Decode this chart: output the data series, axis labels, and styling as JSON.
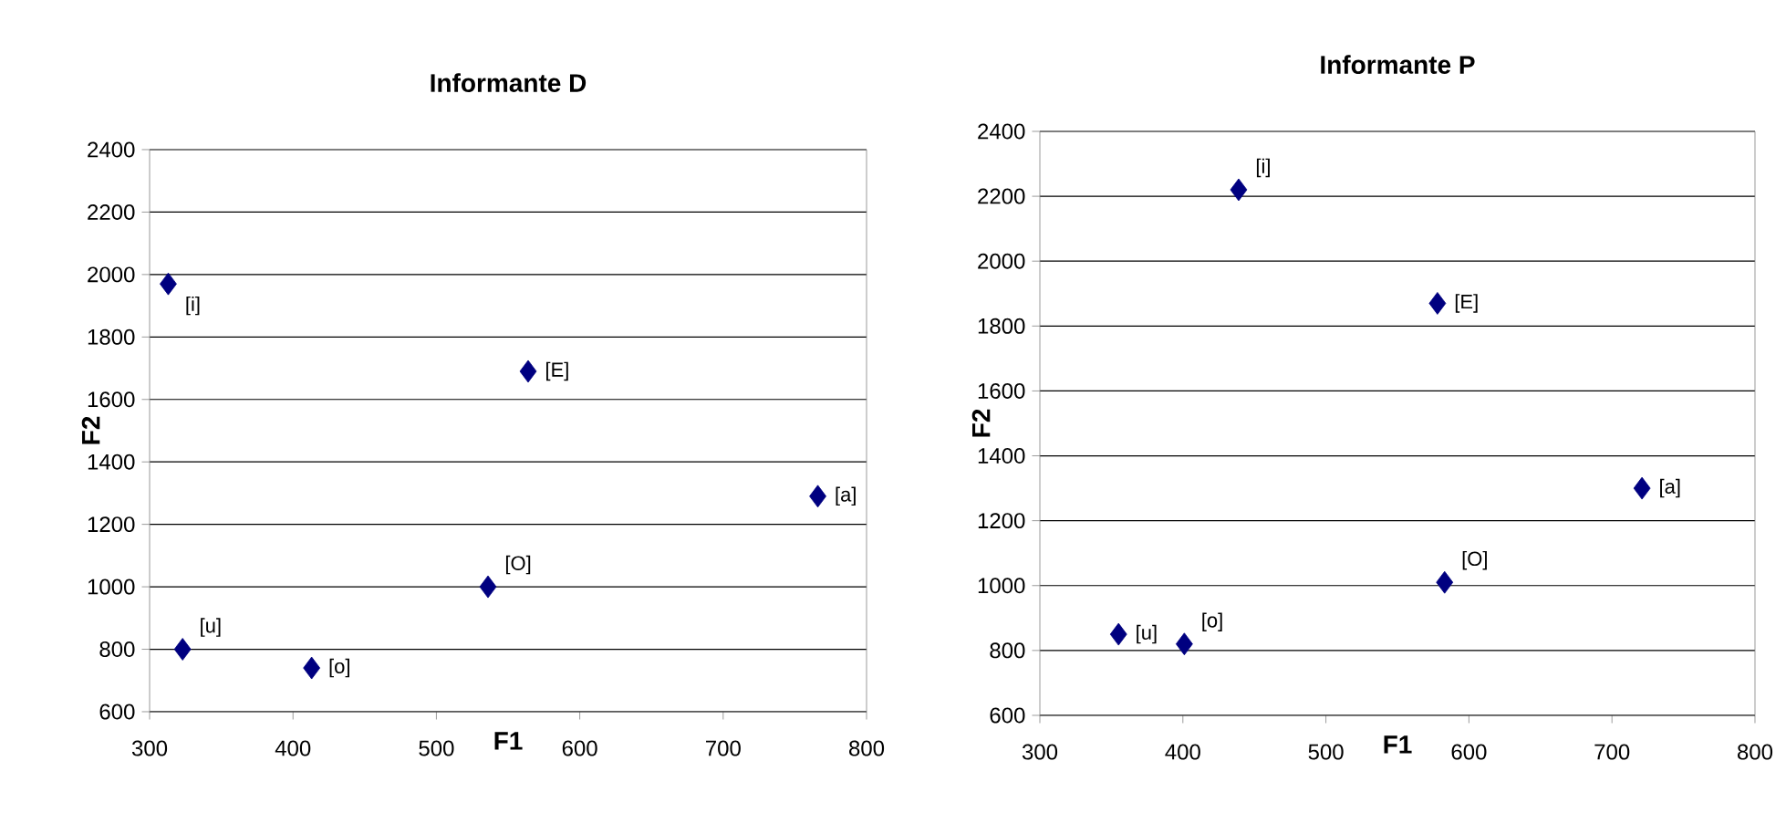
{
  "chart_data": [
    {
      "type": "scatter",
      "title": "Informante D",
      "xlabel": "F1",
      "ylabel": "F2",
      "x": [
        313,
        564,
        766,
        536,
        323,
        413
      ],
      "series": [
        {
          "color": "#000080",
          "values": [
            1970,
            1690,
            1290,
            1000,
            800,
            740
          ]
        }
      ],
      "xlim": [
        300,
        800
      ],
      "ylim": [
        600,
        2400
      ],
      "xticks": [
        300,
        400,
        500,
        600,
        700,
        800
      ],
      "yticks": [
        600,
        800,
        1000,
        1200,
        1400,
        1600,
        1800,
        2000,
        2200,
        2400
      ],
      "grid": "y",
      "marker": "diamond",
      "annotations": [
        {
          "text": "[i]",
          "x": 313,
          "y": 1970
        },
        {
          "text": "[E]",
          "x": 564,
          "y": 1690
        },
        {
          "text": "[a]",
          "x": 766,
          "y": 1290
        },
        {
          "text": "[O]",
          "x": 536,
          "y": 1000
        },
        {
          "text": "[u]",
          "x": 323,
          "y": 800
        },
        {
          "text": "[o]",
          "x": 413,
          "y": 740
        }
      ]
    },
    {
      "type": "scatter",
      "title": "Informante P",
      "xlabel": "F1",
      "ylabel": "F2",
      "x": [
        439,
        578,
        721,
        583,
        355,
        401
      ],
      "series": [
        {
          "color": "#000080",
          "values": [
            2220,
            1870,
            1300,
            1010,
            850,
            820
          ]
        }
      ],
      "xlim": [
        300,
        800
      ],
      "ylim": [
        600,
        2400
      ],
      "xticks": [
        300,
        400,
        500,
        600,
        700,
        800
      ],
      "yticks": [
        600,
        800,
        1000,
        1200,
        1400,
        1600,
        1800,
        2000,
        2200,
        2400
      ],
      "grid": "y",
      "marker": "diamond",
      "annotations": [
        {
          "text": "[i]",
          "x": 439,
          "y": 2220
        },
        {
          "text": "[E]",
          "x": 578,
          "y": 1870
        },
        {
          "text": "[a]",
          "x": 721,
          "y": 1300
        },
        {
          "text": "[O]",
          "x": 583,
          "y": 1010
        },
        {
          "text": "[u]",
          "x": 355,
          "y": 850
        },
        {
          "text": "[o]",
          "x": 401,
          "y": 820
        }
      ]
    }
  ]
}
